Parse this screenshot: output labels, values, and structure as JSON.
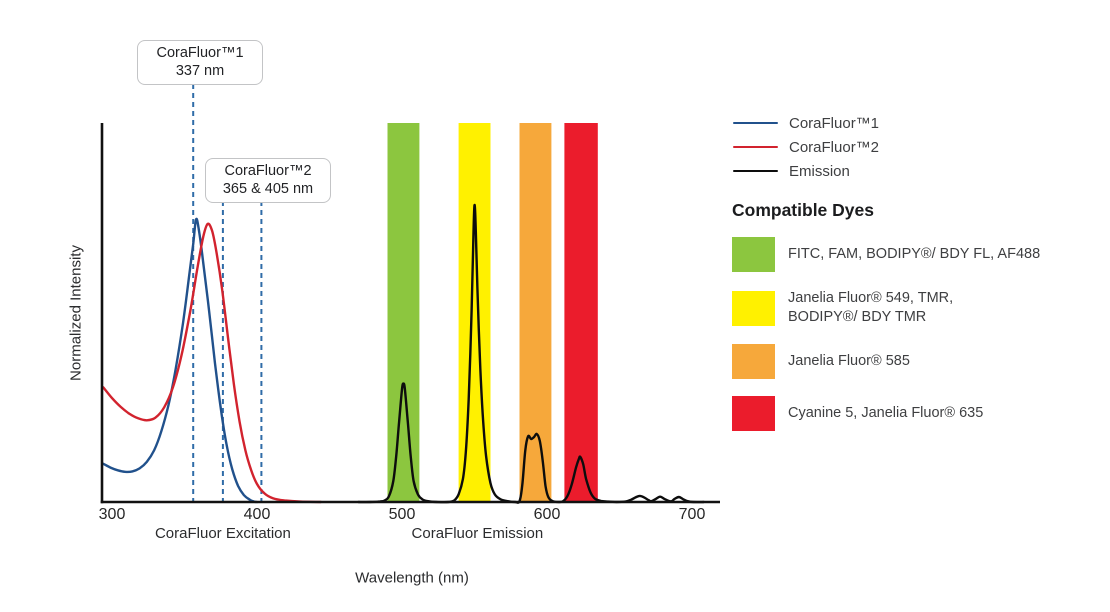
{
  "figure": {
    "y_axis_label": "Normalized Intensity",
    "x_axis_label": "Wavelength (nm)",
    "x_region_labels": [
      {
        "text": "CoraFluor Excitation",
        "center_nm": 376.5
      },
      {
        "text": "CoraFluor Emission",
        "center_nm": 552
      }
    ]
  },
  "annotations": [
    {
      "line1": "CoraFluor™1",
      "line2": "337 nm",
      "markers_nm": [
        356
      ]
    },
    {
      "line1": "CoraFluor™2",
      "line2": "365 & 405 nm",
      "markers_nm": [
        376.5,
        403
      ]
    }
  ],
  "legend": {
    "items": [
      {
        "label": "CoraFluor™1",
        "color": "#21518C",
        "thickness": 2.5
      },
      {
        "label": "CoraFluor™2",
        "color": "#D2232E",
        "thickness": 2.5
      },
      {
        "label": "Emission",
        "color": "#0D0D0D",
        "thickness": 2.5
      }
    ]
  },
  "compatible_dyes": {
    "heading": "Compatible Dyes",
    "items": [
      {
        "key": "green",
        "color": "#8CC63F",
        "label_lines": [
          "FITC, FAM, BODIPY®/ BDY FL, AF488"
        ]
      },
      {
        "key": "yellow",
        "color": "#FFF100",
        "label_lines": [
          "Janelia Fluor® 549, TMR,",
          "BODIPY®/ BDY TMR"
        ]
      },
      {
        "key": "orange",
        "color": "#F6A83B",
        "label_lines": [
          "Janelia Fluor® 585"
        ]
      },
      {
        "key": "red",
        "color": "#EB1C2C",
        "label_lines": [
          "Cyanine 5, Janelia Fluor® 635"
        ]
      }
    ]
  },
  "chart_data": {
    "type": "line",
    "title": "CoraFluor excitation and emission spectra with compatible dye bands",
    "xlabel": "Wavelength (nm)",
    "ylabel": "Normalized Intensity",
    "x_ticks": [
      300,
      400,
      500,
      600,
      700
    ],
    "x_range_nm": [
      294,
      708
    ],
    "ylim": [
      0,
      1
    ],
    "grid": false,
    "legend_position": "right",
    "marker_line_color": "#2F6CA8",
    "axis_color": "#111111",
    "bands": [
      {
        "key": "green",
        "nm": [
          490,
          512
        ],
        "color": "#8CC63F",
        "dyes": "FITC, FAM, BODIPY®/ BDY FL, AF488"
      },
      {
        "key": "yellow",
        "nm": [
          539,
          561
        ],
        "color": "#FFF100",
        "dyes": "Janelia Fluor® 549, TMR, BODIPY®/ BDY TMR"
      },
      {
        "key": "orange",
        "nm": [
          581,
          603
        ],
        "color": "#F6A83B",
        "dyes": "Janelia Fluor® 585"
      },
      {
        "key": "red",
        "nm": [
          612,
          635
        ],
        "color": "#EB1C2C",
        "dyes": "Cyanine 5, Janelia Fluor® 635"
      }
    ],
    "series": [
      {
        "name": "CoraFluor™1",
        "role": "excitation",
        "color": "#21518C",
        "points": [
          [
            294,
            0.1
          ],
          [
            299,
            0.09
          ],
          [
            304,
            0.083
          ],
          [
            309,
            0.079
          ],
          [
            314,
            0.08
          ],
          [
            319,
            0.088
          ],
          [
            324,
            0.105
          ],
          [
            329,
            0.135
          ],
          [
            334,
            0.185
          ],
          [
            339,
            0.255
          ],
          [
            344,
            0.35
          ],
          [
            349,
            0.47
          ],
          [
            353,
            0.585
          ],
          [
            356,
            0.675
          ],
          [
            358,
            0.74
          ],
          [
            360,
            0.71
          ],
          [
            363,
            0.625
          ],
          [
            367,
            0.5
          ],
          [
            371,
            0.365
          ],
          [
            375,
            0.245
          ],
          [
            379,
            0.15
          ],
          [
            383,
            0.085
          ],
          [
            387,
            0.042
          ],
          [
            391,
            0.018
          ],
          [
            395,
            0.006
          ],
          [
            398,
            0.001
          ],
          [
            400,
            0
          ]
        ]
      },
      {
        "name": "CoraFluor™2",
        "role": "excitation",
        "color": "#D2232E",
        "points": [
          [
            294,
            0.3
          ],
          [
            300,
            0.272
          ],
          [
            306,
            0.249
          ],
          [
            312,
            0.231
          ],
          [
            318,
            0.219
          ],
          [
            324,
            0.214
          ],
          [
            330,
            0.221
          ],
          [
            336,
            0.248
          ],
          [
            342,
            0.3
          ],
          [
            348,
            0.385
          ],
          [
            354,
            0.5
          ],
          [
            359,
            0.615
          ],
          [
            363,
            0.695
          ],
          [
            366,
            0.728
          ],
          [
            369,
            0.71
          ],
          [
            372,
            0.655
          ],
          [
            376,
            0.555
          ],
          [
            380,
            0.43
          ],
          [
            384,
            0.31
          ],
          [
            388,
            0.21
          ],
          [
            392,
            0.135
          ],
          [
            396,
            0.083
          ],
          [
            400,
            0.047
          ],
          [
            405,
            0.023
          ],
          [
            411,
            0.01
          ],
          [
            419,
            0.004
          ],
          [
            430,
            0.001
          ],
          [
            444,
            0
          ]
        ]
      },
      {
        "name": "Emission",
        "role": "emission",
        "color": "#0D0D0D",
        "points": [
          [
            470,
            0
          ],
          [
            478,
            0
          ],
          [
            484,
            0.001
          ],
          [
            488,
            0.004
          ],
          [
            491,
            0.015
          ],
          [
            494,
            0.055
          ],
          [
            496,
            0.12
          ],
          [
            498,
            0.21
          ],
          [
            500,
            0.295
          ],
          [
            501,
            0.31
          ],
          [
            502,
            0.295
          ],
          [
            504,
            0.21
          ],
          [
            506,
            0.12
          ],
          [
            508,
            0.055
          ],
          [
            511,
            0.02
          ],
          [
            514,
            0.007
          ],
          [
            518,
            0.002
          ],
          [
            524,
            0
          ],
          [
            532,
            0
          ],
          [
            536,
            0.004
          ],
          [
            539,
            0.02
          ],
          [
            542,
            0.06
          ],
          [
            544,
            0.13
          ],
          [
            546,
            0.27
          ],
          [
            548,
            0.5
          ],
          [
            549,
            0.66
          ],
          [
            550,
            0.777
          ],
          [
            551,
            0.7
          ],
          [
            552,
            0.56
          ],
          [
            554,
            0.35
          ],
          [
            556,
            0.21
          ],
          [
            558,
            0.12
          ],
          [
            561,
            0.05
          ],
          [
            564,
            0.02
          ],
          [
            568,
            0.007
          ],
          [
            573,
            0.002
          ],
          [
            578,
            0
          ],
          [
            581,
            0.002
          ],
          [
            583,
            0.045
          ],
          [
            585,
            0.135
          ],
          [
            587,
            0.172
          ],
          [
            589,
            0.165
          ],
          [
            591,
            0.17
          ],
          [
            593,
            0.178
          ],
          [
            595,
            0.16
          ],
          [
            597,
            0.11
          ],
          [
            599,
            0.042
          ],
          [
            601,
            0.012
          ],
          [
            604,
            0.002
          ],
          [
            608,
            0
          ],
          [
            611,
            0.002
          ],
          [
            614,
            0.015
          ],
          [
            617,
            0.045
          ],
          [
            620,
            0.09
          ],
          [
            622,
            0.113
          ],
          [
            623,
            0.118
          ],
          [
            625,
            0.098
          ],
          [
            627,
            0.06
          ],
          [
            630,
            0.025
          ],
          [
            633,
            0.009
          ],
          [
            637,
            0.003
          ],
          [
            642,
            0.001
          ],
          [
            648,
            0
          ],
          [
            654,
            0.001
          ],
          [
            658,
            0.006
          ],
          [
            661,
            0.012
          ],
          [
            664,
            0.016
          ],
          [
            667,
            0.012
          ],
          [
            670,
            0.005
          ],
          [
            672,
            0.002
          ],
          [
            675,
            0.008
          ],
          [
            678,
            0.014
          ],
          [
            681,
            0.008
          ],
          [
            684,
            0.003
          ],
          [
            686,
            0.002
          ],
          [
            688,
            0.008
          ],
          [
            691,
            0.013
          ],
          [
            694,
            0.007
          ],
          [
            697,
            0.002
          ],
          [
            701,
            0
          ],
          [
            708,
            0
          ]
        ]
      }
    ]
  }
}
